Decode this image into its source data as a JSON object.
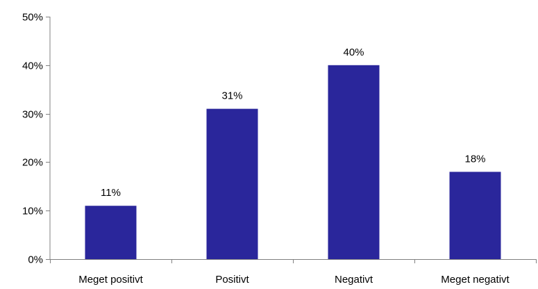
{
  "chart_data": {
    "type": "bar",
    "categories": [
      "Meget positivt",
      "Positivt",
      "Negativt",
      "Meget negativt"
    ],
    "values": [
      11,
      31,
      40,
      18
    ],
    "data_labels": [
      "11%",
      "31%",
      "40%",
      "18%"
    ],
    "yticks": [
      {
        "value": 0,
        "label": "0%"
      },
      {
        "value": 10,
        "label": "10%"
      },
      {
        "value": 20,
        "label": "20%"
      },
      {
        "value": 30,
        "label": "30%"
      },
      {
        "value": 40,
        "label": "40%"
      },
      {
        "value": 50,
        "label": "50%"
      }
    ],
    "ylim": [
      0,
      50
    ],
    "grid": false,
    "legend": "none",
    "bar_color": "#2a269b",
    "axis_color": "#808080"
  }
}
